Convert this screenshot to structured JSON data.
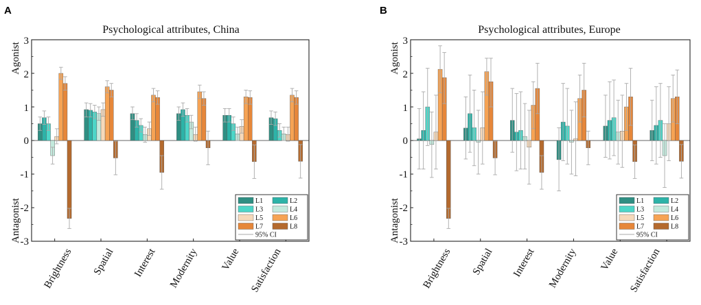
{
  "colors": {
    "L1": "#2f8f83",
    "L2": "#2db3a8",
    "L3": "#4dd6c8",
    "L4": "#c3eadd",
    "L5": "#f6d9ba",
    "L6": "#f6a354",
    "L7": "#e6873a",
    "L8": "#b46a2e",
    "ci": "#a9a9a9"
  },
  "chart_data": [
    {
      "panel_label": "A",
      "type": "bar",
      "title": "Psychological attributes, China",
      "ylabel_top": "Agonist",
      "ylabel_bottom": "Antagonist",
      "ylim": [
        -3,
        3
      ],
      "yticks": [
        "-3",
        "-2",
        "-1",
        "0",
        "1",
        "2",
        "3"
      ],
      "categories": [
        "Brightness",
        "Spatial",
        "Interest",
        "Modernity",
        "Value",
        "Satisfaction"
      ],
      "series": [
        {
          "name": "L1",
          "values": [
            0.5,
            0.92,
            0.8,
            0.8,
            0.75,
            0.68
          ],
          "ci_low": [
            0.3,
            0.7,
            0.62,
            0.6,
            0.55,
            0.48
          ],
          "ci_high": [
            0.7,
            1.12,
            1.0,
            1.0,
            0.95,
            0.88
          ]
        },
        {
          "name": "L2",
          "values": [
            0.68,
            0.9,
            0.6,
            0.92,
            0.75,
            0.65
          ],
          "ci_low": [
            0.48,
            0.7,
            0.4,
            0.72,
            0.55,
            0.45
          ],
          "ci_high": [
            0.88,
            1.1,
            0.8,
            1.12,
            0.95,
            0.85
          ]
        },
        {
          "name": "L3",
          "values": [
            0.5,
            0.85,
            0.45,
            0.75,
            0.5,
            0.3
          ],
          "ci_low": [
            0.3,
            0.65,
            0.25,
            0.55,
            0.3,
            0.1
          ],
          "ci_high": [
            0.7,
            1.05,
            0.65,
            0.95,
            0.7,
            0.5
          ]
        },
        {
          "name": "L4",
          "values": [
            -0.45,
            0.8,
            0.18,
            0.55,
            0.2,
            0.2
          ],
          "ci_low": [
            -0.7,
            0.6,
            -0.05,
            0.35,
            0.0,
            0.0
          ],
          "ci_high": [
            -0.2,
            1.0,
            0.4,
            0.75,
            0.4,
            0.4
          ]
        },
        {
          "name": "L5",
          "values": [
            0.12,
            0.92,
            0.35,
            0.18,
            0.42,
            0.18
          ],
          "ci_low": [
            -0.1,
            0.72,
            0.15,
            -0.02,
            0.22,
            -0.02
          ],
          "ci_high": [
            0.35,
            1.12,
            0.55,
            0.4,
            0.62,
            0.4
          ]
        },
        {
          "name": "L6",
          "values": [
            2.0,
            1.6,
            1.35,
            1.45,
            1.3,
            1.35
          ],
          "ci_low": [
            1.82,
            1.42,
            1.15,
            1.25,
            1.1,
            1.15
          ],
          "ci_high": [
            2.18,
            1.78,
            1.55,
            1.65,
            1.5,
            1.55
          ]
        },
        {
          "name": "L7",
          "values": [
            1.7,
            1.5,
            1.28,
            1.25,
            1.28,
            1.28
          ],
          "ci_low": [
            1.5,
            1.3,
            1.08,
            1.05,
            1.08,
            1.08
          ],
          "ci_high": [
            1.9,
            1.7,
            1.48,
            1.45,
            1.48,
            1.48
          ]
        },
        {
          "name": "L8",
          "values": [
            -2.32,
            -0.52,
            -0.95,
            -0.22,
            -0.63,
            -0.62
          ],
          "ci_low": [
            -2.62,
            -1.02,
            -1.45,
            -0.72,
            -1.13,
            -1.12
          ],
          "ci_high": [
            -2.02,
            -0.02,
            -0.45,
            0.28,
            -0.13,
            -0.12
          ]
        }
      ],
      "legend": {
        "placement": "bottom-right",
        "ci_label": "95% CI"
      }
    },
    {
      "panel_label": "B",
      "type": "bar",
      "title": "Psychological attributes, Europe",
      "ylabel_top": "Agonist",
      "ylabel_bottom": "Antagonist",
      "ylim": [
        -3,
        3
      ],
      "yticks": [
        "-3",
        "-2",
        "-1",
        "0",
        "1",
        "2",
        "3"
      ],
      "categories": [
        "Brightness",
        "Spatial",
        "Interest",
        "Modernity",
        "Value",
        "Satisfaction"
      ],
      "series": [
        {
          "name": "L1",
          "values": [
            0.05,
            0.37,
            0.6,
            -0.57,
            0.43,
            0.3
          ],
          "ci_low": [
            -0.85,
            -0.55,
            -0.35,
            -1.5,
            -0.5,
            -0.6
          ],
          "ci_high": [
            0.95,
            1.3,
            1.55,
            0.38,
            1.35,
            1.2
          ]
        },
        {
          "name": "L2",
          "values": [
            0.3,
            0.8,
            0.25,
            0.55,
            0.6,
            0.45
          ],
          "ci_low": [
            -0.85,
            -0.35,
            -0.9,
            -0.6,
            -0.55,
            -0.7
          ],
          "ci_high": [
            1.45,
            1.95,
            1.4,
            1.7,
            1.75,
            1.6
          ]
        },
        {
          "name": "L3",
          "values": [
            1.0,
            0.38,
            0.3,
            0.43,
            0.68,
            0.6
          ],
          "ci_low": [
            -0.15,
            -0.75,
            -0.85,
            -0.7,
            -0.45,
            -0.5
          ],
          "ci_high": [
            2.15,
            1.5,
            1.45,
            1.55,
            1.8,
            1.7
          ]
        },
        {
          "name": "L4",
          "values": [
            -0.12,
            -0.05,
            0.12,
            -0.05,
            0.25,
            -0.45
          ],
          "ci_low": [
            -1.1,
            -1.0,
            -0.85,
            -1.0,
            -0.7,
            -1.4
          ],
          "ci_high": [
            0.85,
            0.9,
            1.1,
            0.9,
            1.2,
            0.5
          ]
        },
        {
          "name": "L5",
          "values": [
            0.25,
            0.38,
            -0.2,
            0.05,
            0.28,
            0.5
          ],
          "ci_low": [
            -0.85,
            -0.7,
            -1.3,
            -1.05,
            -0.8,
            -0.6
          ],
          "ci_high": [
            1.35,
            1.45,
            0.9,
            1.15,
            1.35,
            1.6
          ]
        },
        {
          "name": "L6",
          "values": [
            2.12,
            2.05,
            1.05,
            1.25,
            1.0,
            1.25
          ],
          "ci_low": [
            1.42,
            1.35,
            0.35,
            0.55,
            0.3,
            0.55
          ],
          "ci_high": [
            2.82,
            2.45,
            1.75,
            1.95,
            1.7,
            1.95
          ]
        },
        {
          "name": "L7",
          "values": [
            1.87,
            1.75,
            1.55,
            1.5,
            1.3,
            1.3
          ],
          "ci_low": [
            1.1,
            1.0,
            0.8,
            0.7,
            0.45,
            0.5
          ],
          "ci_high": [
            2.62,
            2.45,
            2.3,
            2.3,
            2.15,
            2.1
          ]
        },
        {
          "name": "L8",
          "values": [
            -2.32,
            -0.52,
            -0.95,
            -0.22,
            -0.63,
            -0.62
          ],
          "ci_low": [
            -2.62,
            -1.02,
            -1.45,
            -0.72,
            -1.13,
            -1.12
          ],
          "ci_high": [
            -2.02,
            -0.02,
            -0.45,
            0.28,
            -0.13,
            -0.12
          ]
        }
      ],
      "legend": {
        "placement": "bottom-right",
        "ci_label": "95% CI"
      }
    }
  ]
}
